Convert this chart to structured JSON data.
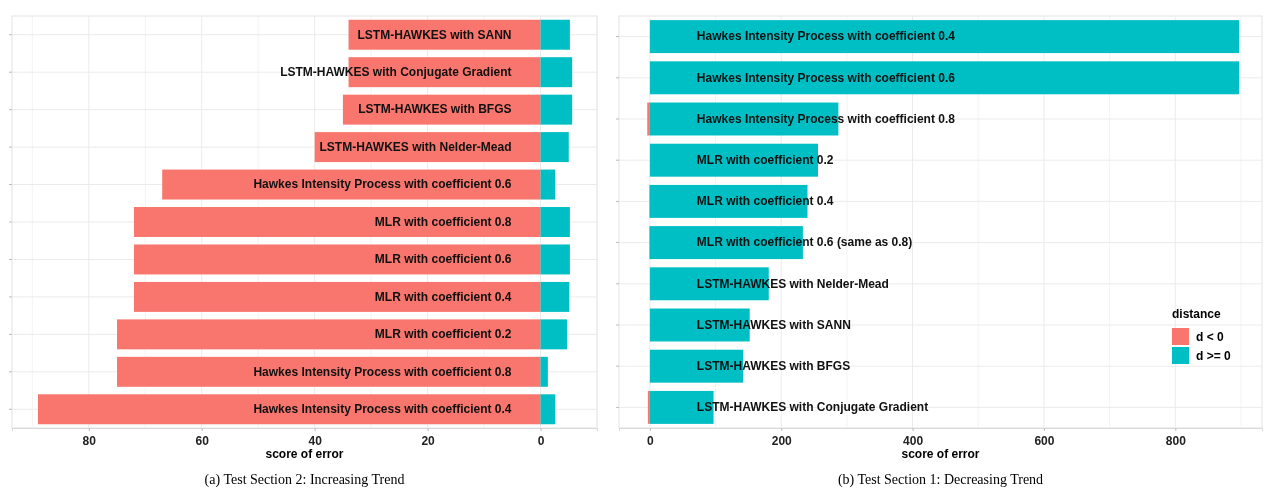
{
  "chart_data": [
    {
      "type": "bar",
      "orientation": "horizontal",
      "stacked": true,
      "title": "(a) Test Section 2: Increasing Trend",
      "xlabel": "score of error",
      "categories": [
        "LSTM-HAWKES with SANN",
        "LSTM-HAWKES with Conjugate Gradient",
        "LSTM-HAWKES with BFGS",
        "LSTM-HAWKES with Nelder-Mead",
        "Hawkes Intensity Process with coefficient 0.6",
        "MLR with coefficient 0.8",
        "MLR with coefficient 0.6",
        "MLR with coefficient 0.4",
        "MLR with coefficient 0.2",
        "Hawkes Intensity Process with coefficient 0.8",
        "Hawkes Intensity Process with coefficient 0.4"
      ],
      "series": [
        {
          "color": "#f8766d",
          "values": [
            34,
            34,
            35,
            40,
            67,
            72,
            72,
            72,
            75,
            75,
            89
          ]
        },
        {
          "color": "#00bfc4",
          "values": [
            -5.2,
            -5.6,
            -5.6,
            -5,
            -2.6,
            -5.2,
            -5.2,
            -5.1,
            -4.7,
            -1.3,
            -2.6
          ]
        }
      ],
      "xlim": [
        93.6,
        -10
      ],
      "xticks": [
        80,
        60,
        40,
        20,
        0
      ],
      "grid": true,
      "legend": false
    },
    {
      "type": "bar",
      "orientation": "horizontal",
      "stacked": true,
      "title": "(b) Test Section 1: Decreasing Trend",
      "xlabel": "score of error",
      "legend_title": "distance",
      "categories": [
        "Hawkes Intensity Process with coefficient 0.4",
        "Hawkes Intensity Process with coefficient 0.6",
        "Hawkes Intensity Process with coefficient 0.8",
        "MLR with coefficient 0.2",
        "MLR with coefficient 0.4",
        "MLR with coefficient 0.6 (same as 0.8)",
        "LSTM-HAWKES with Nelder-Mead",
        "LSTM-HAWKES with SANN",
        "LSTM-HAWKES with BFGS",
        "LSTM-HAWKES with Conjugate Gradient"
      ],
      "series": [
        {
          "name": "d < 0",
          "color": "#f8766d",
          "values": [
            null,
            null,
            -4,
            null,
            -1,
            -1,
            null,
            null,
            null,
            -3
          ]
        },
        {
          "name": "d >= 0",
          "color": "#00bfc4",
          "values": [
            897,
            897,
            287,
            256,
            240,
            233,
            181,
            152,
            142,
            97
          ]
        }
      ],
      "xlim": [
        -47,
        932
      ],
      "xticks": [
        0,
        200,
        400,
        600,
        800
      ],
      "grid": true,
      "legend": "right"
    }
  ]
}
